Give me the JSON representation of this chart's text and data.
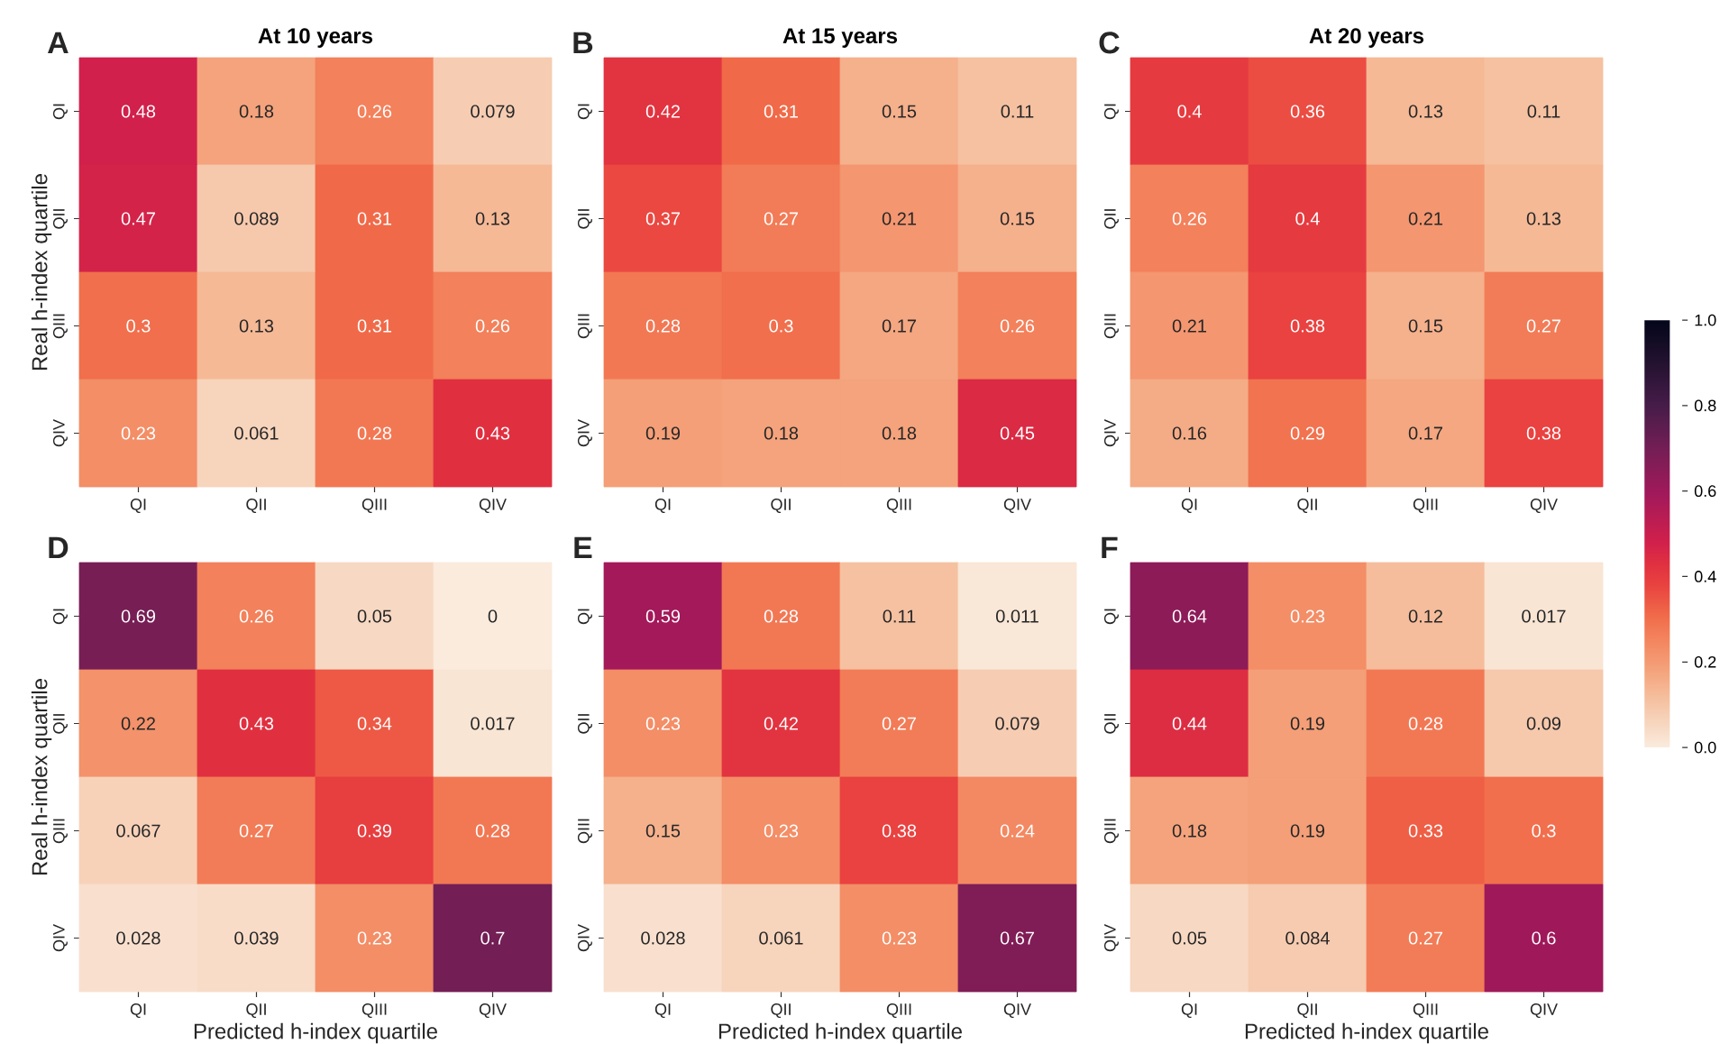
{
  "chart_data": [
    {
      "type": "heatmap",
      "title": "At 10 years",
      "ylabel": "Real h-index quartile",
      "annotations": [
        "A"
      ],
      "categories": [
        "QI",
        "QII",
        "QIII",
        "QIV"
      ],
      "y_categories": [
        "QI",
        "QII",
        "QIII",
        "QIV"
      ],
      "data_labels": true,
      "cells": [
        [
          0.48,
          0.18,
          0.26,
          0.079
        ],
        [
          0.47,
          0.089,
          0.31,
          0.13
        ],
        [
          0.3,
          0.13,
          0.31,
          0.26
        ],
        [
          0.23,
          0.061,
          0.28,
          0.43
        ]
      ]
    },
    {
      "type": "heatmap",
      "title": "At 15 years",
      "annotations": [
        "B"
      ],
      "categories": [
        "QI",
        "QII",
        "QIII",
        "QIV"
      ],
      "y_categories": [
        "QI",
        "QII",
        "QIII",
        "QIV"
      ],
      "data_labels": true,
      "cells": [
        [
          0.42,
          0.31,
          0.15,
          0.11
        ],
        [
          0.37,
          0.27,
          0.21,
          0.15
        ],
        [
          0.28,
          0.3,
          0.17,
          0.26
        ],
        [
          0.19,
          0.18,
          0.18,
          0.45
        ]
      ]
    },
    {
      "type": "heatmap",
      "title": "At 20 years",
      "annotations": [
        "C"
      ],
      "categories": [
        "QI",
        "QII",
        "QIII",
        "QIV"
      ],
      "y_categories": [
        "QI",
        "QII",
        "QIII",
        "QIV"
      ],
      "data_labels": true,
      "cells": [
        [
          0.4,
          0.36,
          0.13,
          0.11
        ],
        [
          0.26,
          0.4,
          0.21,
          0.13
        ],
        [
          0.21,
          0.38,
          0.15,
          0.27
        ],
        [
          0.16,
          0.29,
          0.17,
          0.38
        ]
      ]
    },
    {
      "type": "heatmap",
      "xlabel": "Predicted h-index quartile",
      "ylabel": "Real h-index quartile",
      "annotations": [
        "D"
      ],
      "categories": [
        "QI",
        "QII",
        "QIII",
        "QIV"
      ],
      "y_categories": [
        "QI",
        "QII",
        "QIII",
        "QIV"
      ],
      "data_labels": true,
      "cells": [
        [
          0.69,
          0.26,
          0.05,
          0
        ],
        [
          0.22,
          0.43,
          0.34,
          0.017
        ],
        [
          0.067,
          0.27,
          0.39,
          0.28
        ],
        [
          0.028,
          0.039,
          0.23,
          0.7
        ]
      ]
    },
    {
      "type": "heatmap",
      "xlabel": "Predicted h-index quartile",
      "annotations": [
        "E"
      ],
      "categories": [
        "QI",
        "QII",
        "QIII",
        "QIV"
      ],
      "y_categories": [
        "QI",
        "QII",
        "QIII",
        "QIV"
      ],
      "data_labels": true,
      "cells": [
        [
          0.59,
          0.28,
          0.11,
          0.011
        ],
        [
          0.23,
          0.42,
          0.27,
          0.079
        ],
        [
          0.15,
          0.23,
          0.38,
          0.24
        ],
        [
          0.028,
          0.061,
          0.23,
          0.67
        ]
      ]
    },
    {
      "type": "heatmap",
      "xlabel": "Predicted h-index quartile",
      "annotations": [
        "F"
      ],
      "categories": [
        "QI",
        "QII",
        "QIII",
        "QIV"
      ],
      "y_categories": [
        "QI",
        "QII",
        "QIII",
        "QIV"
      ],
      "clim": [
        0,
        1
      ],
      "data_labels": true,
      "cells": [
        [
          0.64,
          0.23,
          0.12,
          0.017
        ],
        [
          0.44,
          0.19,
          0.28,
          0.09
        ],
        [
          0.18,
          0.19,
          0.33,
          0.3
        ],
        [
          0.05,
          0.084,
          0.27,
          0.6
        ]
      ],
      "cticks": [
        {
          "value": 0,
          "label": "0.0"
        },
        {
          "value": 0.2,
          "label": "0.2"
        },
        {
          "value": 0.4,
          "label": "0.4"
        },
        {
          "value": 0.6,
          "label": "0.6"
        },
        {
          "value": 0.8,
          "label": "0.8"
        },
        {
          "value": 1,
          "label": "1.0"
        }
      ]
    }
  ]
}
